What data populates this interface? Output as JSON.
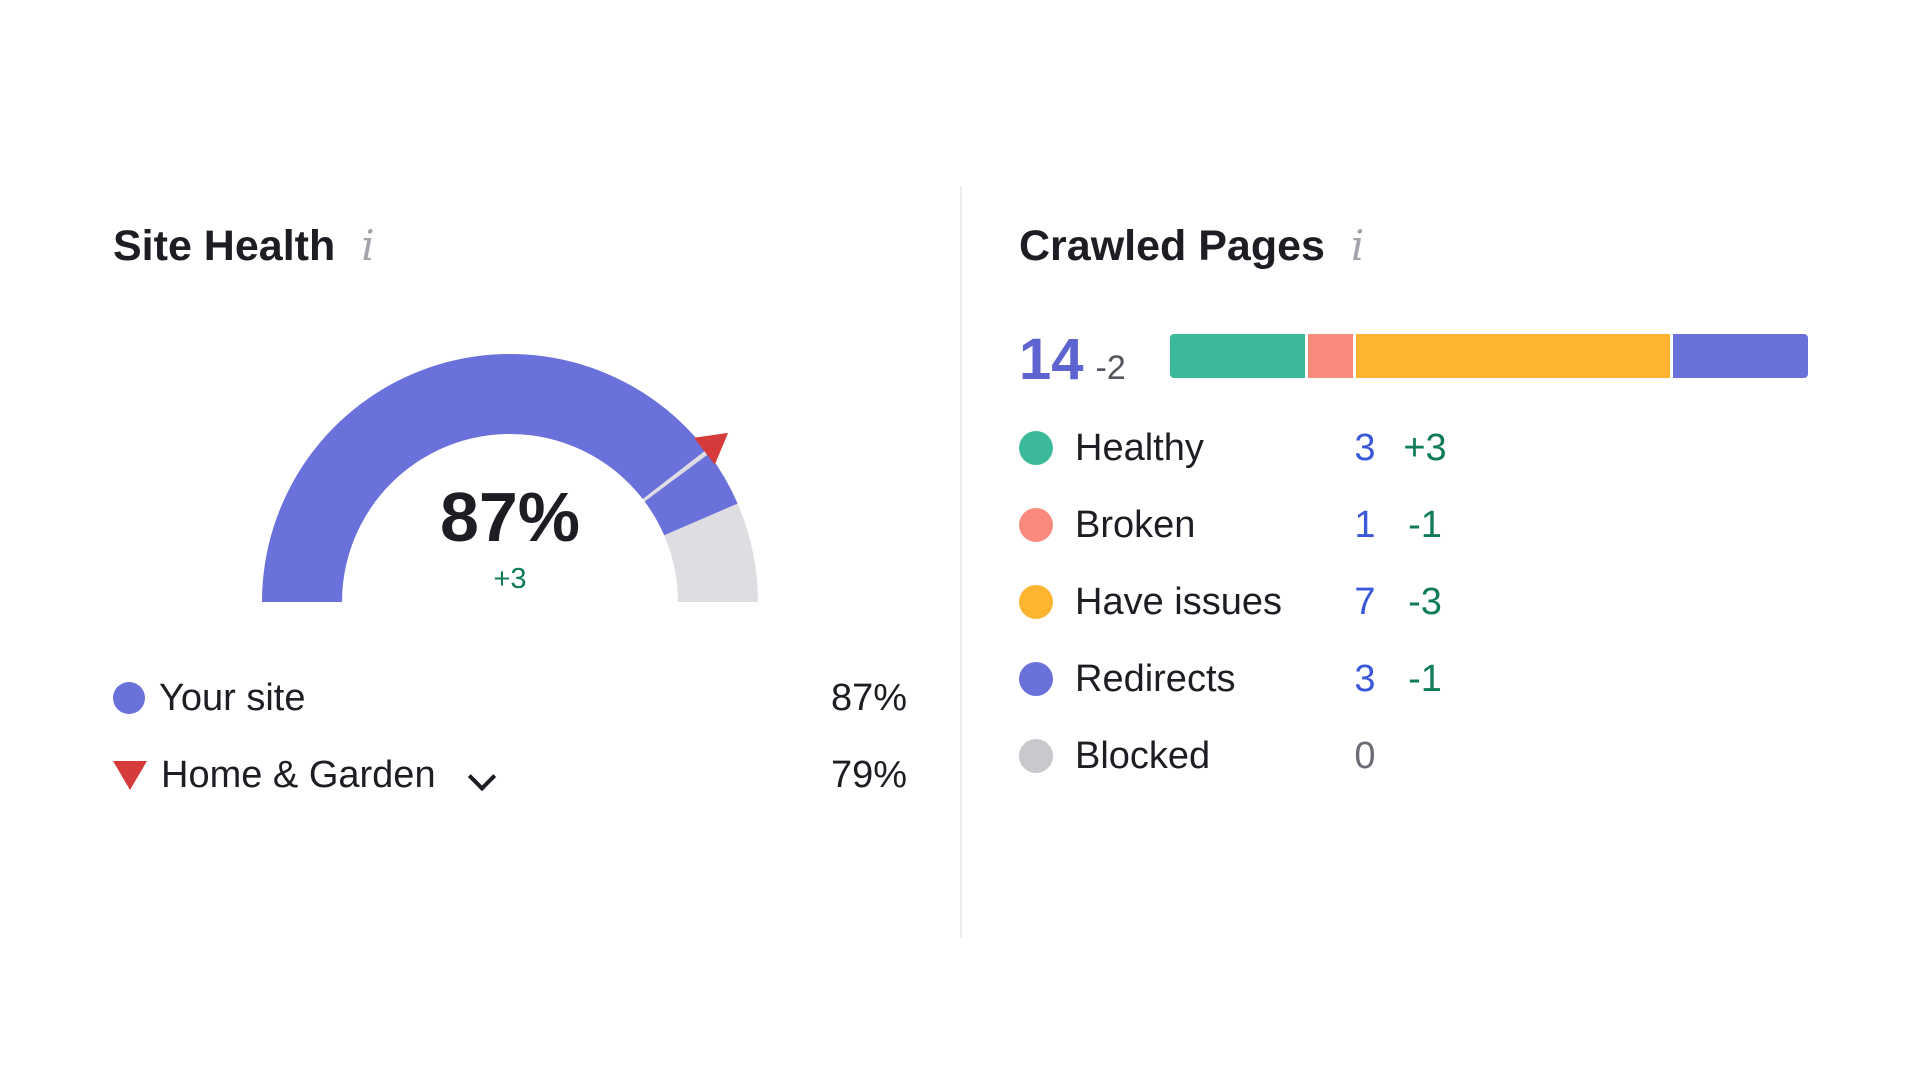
{
  "site_health": {
    "title": "Site Health",
    "info_icon": "i",
    "gauge": {
      "value_label": "87%",
      "delta_label": "+3",
      "your_site_fraction": 0.87,
      "benchmark_fraction": 0.79,
      "colors": {
        "fill": "#6a71db",
        "track": "#dedde2",
        "marker": "#d63b3b"
      }
    },
    "legend": [
      {
        "label": "Your site",
        "value": "87%",
        "marker": "dot",
        "color": "#6a71db"
      },
      {
        "label": "Home & Garden",
        "value": "79%",
        "marker": "triangle",
        "color": "#d63b3b"
      }
    ]
  },
  "crawled_pages": {
    "title": "Crawled Pages",
    "info_icon": "i",
    "total": "14",
    "total_delta": "-2",
    "categories": [
      {
        "label": "Healthy",
        "count": "3",
        "change": "+3",
        "share": 3,
        "color": "#3cb99b"
      },
      {
        "label": "Broken",
        "count": "1",
        "change": "-1",
        "share": 1,
        "color": "#fb8a7e"
      },
      {
        "label": "Have issues",
        "count": "7",
        "change": "-3",
        "share": 7,
        "color": "#fdb42f"
      },
      {
        "label": "Redirects",
        "count": "3",
        "change": "-1",
        "share": 3,
        "color": "#6a71db"
      },
      {
        "label": "Blocked",
        "count": "0",
        "change": "",
        "share": 0,
        "color": "#c9c9cd"
      }
    ]
  }
}
